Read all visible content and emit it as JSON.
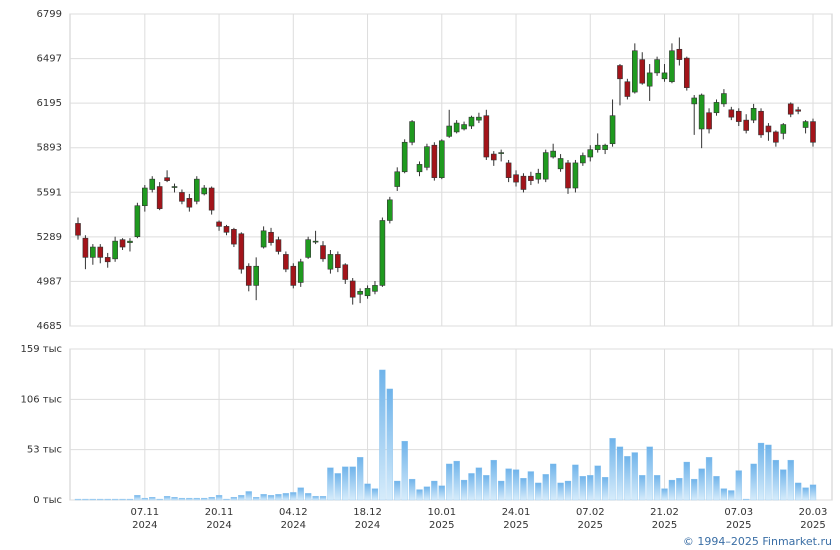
{
  "chart_data": [
    {
      "type": "candlestick",
      "open": [
        5380,
        5280,
        5150,
        5220,
        5150,
        5140,
        5270,
        5250,
        5290,
        5500,
        5610,
        5630,
        5690,
        5630,
        5590,
        5550,
        5530,
        5580,
        5620,
        5390,
        5360,
        5340,
        5310,
        5090,
        4960,
        5220,
        5320,
        5270,
        5170,
        5090,
        4980,
        5150,
        5260,
        5230,
        5070,
        5170,
        5100,
        4990,
        4900,
        4890,
        4920,
        4960,
        5400,
        5630,
        5730,
        5930,
        5730,
        5760,
        5910,
        5690,
        5970,
        6000,
        6020,
        6040,
        6080,
        6110,
        5850,
        5860,
        5790,
        5710,
        5700,
        5700,
        5680,
        5680,
        5830,
        5750,
        5790,
        5620,
        5790,
        5830,
        5880,
        5880,
        5920,
        6450,
        6340,
        6270,
        6490,
        6310,
        6400,
        6360,
        6340,
        6560,
        6500,
        6190,
        6020,
        6130,
        6130,
        6190,
        6150,
        6140,
        6080,
        6080,
        6140,
        6040,
        6000,
        5990,
        6190,
        6150,
        6030,
        6070
      ],
      "high": [
        5420,
        5300,
        5240,
        5240,
        5180,
        5290,
        5280,
        5280,
        5520,
        5640,
        5700,
        5660,
        5740,
        5650,
        5610,
        5580,
        5700,
        5640,
        5630,
        5400,
        5370,
        5350,
        5320,
        5110,
        5150,
        5360,
        5350,
        5290,
        5190,
        5110,
        5140,
        5290,
        5330,
        5260,
        5200,
        5190,
        5110,
        5010,
        4940,
        4960,
        4990,
        5420,
        5560,
        5760,
        5950,
        6080,
        5800,
        5920,
        5930,
        5950,
        6150,
        6080,
        6070,
        6110,
        6130,
        6150,
        5870,
        5880,
        5810,
        5740,
        5720,
        5730,
        5750,
        5880,
        5920,
        5850,
        5810,
        5810,
        5860,
        5910,
        5990,
        5920,
        6220,
        6460,
        6360,
        6600,
        6540,
        6460,
        6510,
        6460,
        6600,
        6640,
        6510,
        6250,
        6260,
        6160,
        6220,
        6290,
        6170,
        6160,
        6120,
        6190,
        6160,
        6060,
        6010,
        6060,
        6200,
        6170,
        6080,
        6090
      ],
      "low": [
        5270,
        5070,
        5100,
        5110,
        5080,
        5120,
        5200,
        5190,
        5280,
        5460,
        5590,
        5470,
        5660,
        5590,
        5510,
        5460,
        5510,
        5570,
        5440,
        5330,
        5300,
        5220,
        5040,
        4920,
        4860,
        5210,
        5230,
        5170,
        5050,
        4940,
        4950,
        5140,
        5240,
        5120,
        5040,
        5050,
        4970,
        4830,
        4840,
        4870,
        4900,
        4950,
        5380,
        5600,
        5720,
        5910,
        5700,
        5740,
        5670,
        5680,
        5960,
        5990,
        6010,
        6020,
        6060,
        5810,
        5770,
        5800,
        5660,
        5630,
        5590,
        5640,
        5650,
        5660,
        5820,
        5730,
        5580,
        5590,
        5770,
        5800,
        5860,
        5850,
        5900,
        6180,
        6220,
        6260,
        6320,
        6210,
        6380,
        6340,
        6330,
        6450,
        6280,
        5980,
        5890,
        5990,
        6110,
        6170,
        6080,
        6040,
        5990,
        6060,
        5960,
        5940,
        5900,
        5950,
        6100,
        6120,
        5990,
        5900
      ],
      "close": [
        5300,
        5150,
        5220,
        5150,
        5120,
        5260,
        5220,
        5260,
        5500,
        5620,
        5680,
        5480,
        5670,
        5630,
        5530,
        5490,
        5680,
        5620,
        5470,
        5360,
        5320,
        5240,
        5070,
        4960,
        5090,
        5330,
        5250,
        5190,
        5070,
        4960,
        5120,
        5270,
        5260,
        5140,
        5170,
        5080,
        5000,
        4880,
        4920,
        4940,
        4960,
        5400,
        5540,
        5730,
        5930,
        6070,
        5780,
        5900,
        5690,
        5940,
        6040,
        6060,
        6050,
        6100,
        6100,
        5830,
        5810,
        5860,
        5690,
        5660,
        5610,
        5670,
        5720,
        5860,
        5870,
        5820,
        5620,
        5790,
        5840,
        5880,
        5910,
        5910,
        6110,
        6360,
        6240,
        6550,
        6330,
        6400,
        6490,
        6400,
        6550,
        6490,
        6300,
        6230,
        6250,
        6020,
        6200,
        6260,
        6100,
        6070,
        6010,
        6160,
        5980,
        6000,
        5930,
        6050,
        6120,
        6140,
        6070,
        5930
      ],
      "up_color": "#1f9a1f",
      "down_color": "#a3141a",
      "ylim": [
        4685,
        6799
      ],
      "yticks": [
        4685,
        4987,
        5289,
        5591,
        5893,
        6195,
        6497,
        6799
      ],
      "grid": true
    },
    {
      "type": "bar",
      "categories": [
        null,
        null,
        null,
        null,
        null,
        null,
        null,
        null,
        null,
        "07.11\n2024",
        null,
        null,
        null,
        null,
        null,
        null,
        null,
        null,
        null,
        "20.11\n2024",
        null,
        null,
        null,
        null,
        null,
        null,
        null,
        null,
        null,
        "04.12\n2024",
        null,
        null,
        null,
        null,
        null,
        null,
        null,
        null,
        null,
        "18.12\n2024",
        null,
        null,
        null,
        null,
        null,
        null,
        null,
        null,
        null,
        "10.01\n2025",
        null,
        null,
        null,
        null,
        null,
        null,
        null,
        null,
        null,
        "24.01\n2025",
        null,
        null,
        null,
        null,
        null,
        null,
        null,
        null,
        null,
        "07.02\n2025",
        null,
        null,
        null,
        null,
        null,
        null,
        null,
        null,
        null,
        "21.02\n2025",
        null,
        null,
        null,
        null,
        null,
        null,
        null,
        null,
        null,
        "07.03\n2025",
        null,
        null,
        null,
        null,
        null,
        null,
        null,
        null,
        null,
        "20.03\n2025"
      ],
      "values": [
        1,
        1,
        1,
        1,
        1,
        1,
        1,
        1,
        5,
        2,
        3,
        1,
        4,
        3,
        2,
        2,
        2,
        2,
        3,
        5,
        1,
        3,
        5,
        9,
        3,
        6,
        5,
        6,
        7,
        8,
        13,
        7,
        4,
        4,
        34,
        28,
        35,
        35,
        45,
        17,
        12,
        137,
        117,
        20,
        62,
        22,
        11,
        14,
        20,
        15,
        38,
        41,
        21,
        28,
        34,
        26,
        42,
        20,
        33,
        32,
        23,
        30,
        18,
        27,
        38,
        18,
        20,
        37,
        25,
        26,
        36,
        24,
        65,
        56,
        46,
        50,
        26,
        56,
        26,
        12,
        21,
        23,
        40,
        22,
        33,
        45,
        25,
        12,
        10,
        31,
        1,
        38,
        60,
        58,
        42,
        32,
        42,
        18,
        13,
        16
      ],
      "color": "#8cc4ee",
      "ylim": [
        0,
        159
      ],
      "yticks": [
        {
          "value": 0,
          "label": "0 тыс"
        },
        {
          "value": 53,
          "label": "53 тыс"
        },
        {
          "value": 106,
          "label": "106 тыс"
        },
        {
          "value": 159,
          "label": "159 тыс"
        }
      ],
      "grid": true
    }
  ],
  "footer": "© 1994–2025 Finmarket.ru"
}
